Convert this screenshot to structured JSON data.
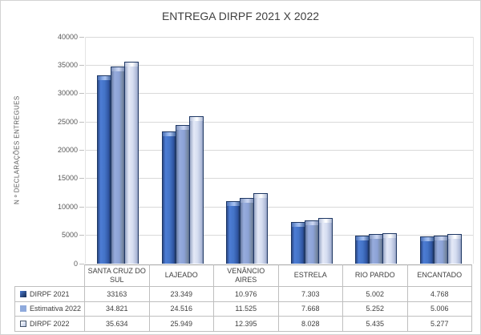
{
  "chart_data": {
    "type": "bar",
    "title": "ENTREGA DIRPF 2021 X 2022",
    "ylabel": "N º DECLARAÇÕES ENTREGUES",
    "xlabel": "",
    "ylim": [
      0,
      40000
    ],
    "yticks": [
      0,
      5000,
      10000,
      15000,
      20000,
      25000,
      30000,
      35000,
      40000
    ],
    "grid": true,
    "legend_position": "data-table-left",
    "categories": [
      "SANTA CRUZ DO SUL",
      "LAJEADO",
      "VENÂNCIO AIRES",
      "ESTRELA",
      "RIO PARDO",
      "ENCANTADO"
    ],
    "series": [
      {
        "name": "DIRPF 2021",
        "color": "#4472C4",
        "values": [
          33163,
          23349,
          10976,
          7303,
          5002,
          4768
        ],
        "display": [
          "33163",
          "23.349",
          "10.976",
          "7.303",
          "5.002",
          "4.768"
        ]
      },
      {
        "name": "Estimativa 2022",
        "color": "#8FAADC",
        "values": [
          34821,
          24516,
          11525,
          7668,
          5252,
          5006
        ],
        "display": [
          "34.821",
          "24.516",
          "11.525",
          "7.668",
          "5.252",
          "5.006"
        ]
      },
      {
        "name": "DIRPF 2022",
        "color": "#D9E1F2",
        "values": [
          35634,
          25949,
          12395,
          8028,
          5435,
          5277
        ],
        "display": [
          "35.634",
          "25.949",
          "12.395",
          "8.028",
          "5.435",
          "5.277"
        ]
      }
    ]
  }
}
